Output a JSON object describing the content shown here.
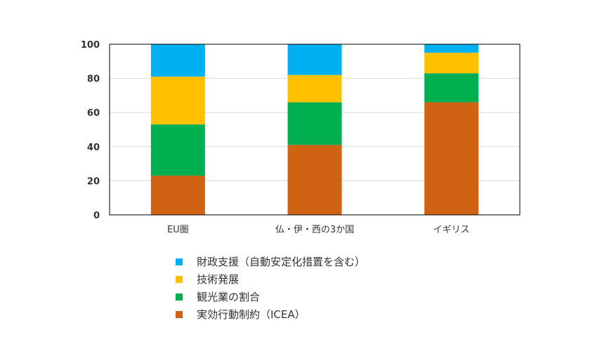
{
  "chart_data": {
    "type": "bar",
    "stacked": true,
    "categories": [
      "EU圏",
      "仏・伊・西の3か国",
      "イギリス"
    ],
    "ylim": [
      0,
      100
    ],
    "yticks": [
      0,
      20,
      40,
      60,
      80,
      100
    ],
    "grid": true,
    "legend_position": "bottom",
    "series": [
      {
        "name": "実効行動制約（ICEA）",
        "color": "#D06214",
        "values": [
          23,
          41,
          66
        ]
      },
      {
        "name": "観光業の割合",
        "color": "#00AF50",
        "values": [
          30,
          25,
          17
        ]
      },
      {
        "name": "技術発展",
        "color": "#FFC000",
        "values": [
          28,
          16,
          12
        ]
      },
      {
        "name": "財政支援（自動安定化措置を含む）",
        "color": "#00B0F0",
        "values": [
          19,
          18,
          5
        ]
      }
    ],
    "legend_order": [
      3,
      2,
      1,
      0
    ]
  }
}
